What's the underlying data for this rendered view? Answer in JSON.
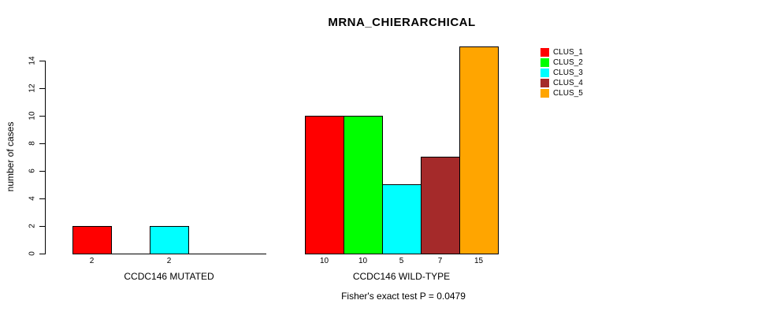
{
  "title": "MRNA_CHIERARCHICAL",
  "footnote": "Fisher's exact test P = 0.0479",
  "chart_data": {
    "type": "bar",
    "title": "MRNA_CHIERARCHICAL",
    "xlabel": "",
    "ylabel": "number of cases",
    "ylim": [
      0,
      14
    ],
    "yticks": [
      0,
      2,
      4,
      6,
      8,
      10,
      12,
      14
    ],
    "grid": false,
    "legend_position": "top-right",
    "legend": [
      {
        "label": "CLUS_1",
        "color": "#FF0000"
      },
      {
        "label": "CLUS_2",
        "color": "#00FF00"
      },
      {
        "label": "CLUS_3",
        "color": "#00FFFF"
      },
      {
        "label": "CLUS_4",
        "color": "#A52A2A"
      },
      {
        "label": "CLUS_5",
        "color": "#FFA500"
      }
    ],
    "series_names": [
      "CLUS_1",
      "CLUS_2",
      "CLUS_3",
      "CLUS_4",
      "CLUS_5"
    ],
    "groups": [
      {
        "label": "CCDC146 MUTATED",
        "values": [
          2,
          0,
          2,
          0,
          0
        ],
        "bar_labels": [
          "2",
          "",
          "2",
          "",
          ""
        ]
      },
      {
        "label": "CCDC146 WILD-TYPE",
        "values": [
          10,
          10,
          5,
          7,
          15
        ],
        "bar_labels": [
          "10",
          "10",
          "5",
          "7",
          "15"
        ]
      }
    ],
    "annotation": "Fisher's exact test P = 0.0479"
  }
}
